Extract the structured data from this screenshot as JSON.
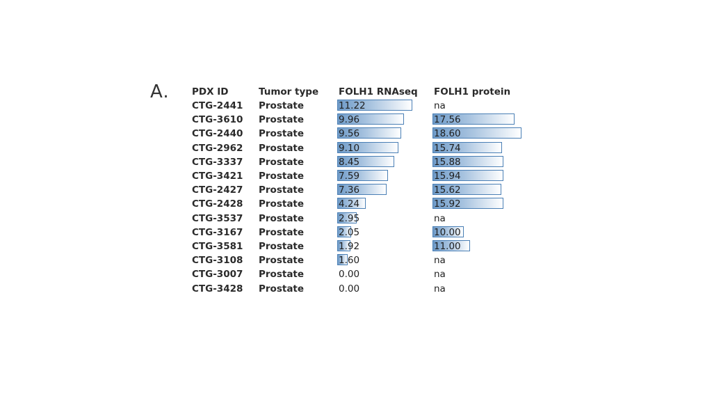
{
  "panel_label": "A.",
  "chart_data": {
    "type": "table",
    "title": "",
    "columns": [
      "PDX ID",
      "Tumor type",
      "FOLH1 RNAseq",
      "FOLH1 protein"
    ],
    "rows": [
      {
        "id": "CTG-2441",
        "tumor": "Prostate",
        "rnaseq": "11.22",
        "protein": "na"
      },
      {
        "id": "CTG-3610",
        "tumor": "Prostate",
        "rnaseq": "9.96",
        "protein": "17.56"
      },
      {
        "id": "CTG-2440",
        "tumor": "Prostate",
        "rnaseq": "9.56",
        "protein": "18.60"
      },
      {
        "id": "CTG-2962",
        "tumor": "Prostate",
        "rnaseq": "9.10",
        "protein": "15.74"
      },
      {
        "id": "CTG-3337",
        "tumor": "Prostate",
        "rnaseq": "8.45",
        "protein": "15.88"
      },
      {
        "id": "CTG-3421",
        "tumor": "Prostate",
        "rnaseq": "7.59",
        "protein": "15.94"
      },
      {
        "id": "CTG-2427",
        "tumor": "Prostate",
        "rnaseq": "7.36",
        "protein": "15.62"
      },
      {
        "id": "CTG-2428",
        "tumor": "Prostate",
        "rnaseq": "4.24",
        "protein": "15.92"
      },
      {
        "id": "CTG-3537",
        "tumor": "Prostate",
        "rnaseq": "2.95",
        "protein": "na"
      },
      {
        "id": "CTG-3167",
        "tumor": "Prostate",
        "rnaseq": "2.05",
        "protein": "10.00"
      },
      {
        "id": "CTG-3581",
        "tumor": "Prostate",
        "rnaseq": "1.92",
        "protein": "11.00"
      },
      {
        "id": "CTG-3108",
        "tumor": "Prostate",
        "rnaseq": "1.60",
        "protein": "na"
      },
      {
        "id": "CTG-3007",
        "tumor": "Prostate",
        "rnaseq": "0.00",
        "protein": "na"
      },
      {
        "id": "CTG-3428",
        "tumor": "Prostate",
        "rnaseq": "0.00",
        "protein": "na"
      }
    ],
    "bar_color": "#4a7fb5"
  }
}
